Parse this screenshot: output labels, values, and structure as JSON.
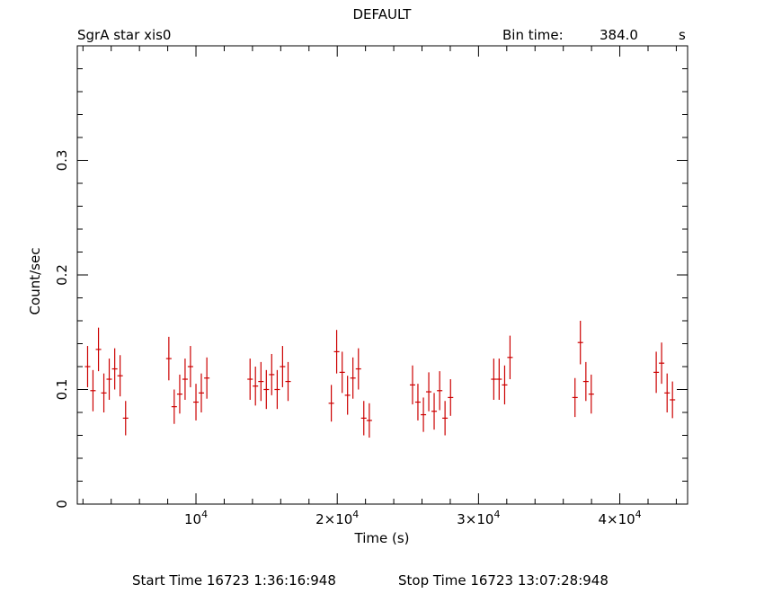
{
  "header": {
    "title": "DEFAULT",
    "source": "SgrA star xis0",
    "bin_label": "Bin time:",
    "bin_value": "384.0",
    "bin_unit": "s"
  },
  "footer": {
    "start": "Start Time 16723  1:36:16:948",
    "stop": "Stop Time 16723 13:07:28:948"
  },
  "colors": {
    "data": "#cc0000",
    "axes": "#000000"
  },
  "chart_data": {
    "type": "scatter",
    "title": "DEFAULT",
    "xlabel": "Time (s)",
    "ylabel": "Count/sec",
    "xlim": [
      1600,
      44800
    ],
    "ylim": [
      0,
      0.4
    ],
    "xticks": [
      {
        "value": 10000,
        "base": "10",
        "exp": "4"
      },
      {
        "value": 20000,
        "base": "2×10",
        "exp": "4"
      },
      {
        "value": 30000,
        "base": "3×10",
        "exp": "4"
      },
      {
        "value": 40000,
        "base": "4×10",
        "exp": "4"
      }
    ],
    "yticks": [
      {
        "value": 0,
        "label": "0"
      },
      {
        "value": 0.1,
        "label": "0.1"
      },
      {
        "value": 0.2,
        "label": "0.2"
      },
      {
        "value": 0.3,
        "label": "0.3"
      }
    ],
    "bin_half_width": 192,
    "series": [
      {
        "x": [
          2330,
          2710,
          3100,
          3480,
          3860,
          4250,
          4630,
          5020,
          8080,
          8460,
          8850,
          9230,
          9610,
          10000,
          10380,
          10770,
          13830,
          14210,
          14600,
          14980,
          15360,
          15750,
          16130,
          16520,
          19580,
          19960,
          20350,
          20730,
          21110,
          21500,
          21880,
          22270,
          25330,
          25710,
          26100,
          26480,
          26860,
          27250,
          27630,
          28020,
          31080,
          31460,
          31850,
          32230,
          36830,
          37210,
          37600,
          37980,
          42580,
          42960,
          43350,
          43730
        ],
        "y": [
          0.12,
          0.099,
          0.135,
          0.097,
          0.109,
          0.118,
          0.112,
          0.075,
          0.127,
          0.085,
          0.096,
          0.109,
          0.12,
          0.089,
          0.097,
          0.11,
          0.109,
          0.103,
          0.107,
          0.1,
          0.113,
          0.1,
          0.12,
          0.107,
          0.088,
          0.133,
          0.115,
          0.095,
          0.11,
          0.118,
          0.075,
          0.073,
          0.104,
          0.089,
          0.078,
          0.098,
          0.081,
          0.099,
          0.075,
          0.093,
          0.109,
          0.109,
          0.104,
          0.128,
          0.093,
          0.141,
          0.107,
          0.096,
          0.115,
          0.123,
          0.097,
          0.091
        ],
        "yerr": [
          0.018,
          0.018,
          0.019,
          0.017,
          0.018,
          0.018,
          0.018,
          0.015,
          0.019,
          0.015,
          0.017,
          0.018,
          0.018,
          0.016,
          0.017,
          0.018,
          0.018,
          0.017,
          0.017,
          0.017,
          0.018,
          0.017,
          0.018,
          0.017,
          0.016,
          0.019,
          0.018,
          0.017,
          0.018,
          0.018,
          0.015,
          0.015,
          0.017,
          0.016,
          0.015,
          0.017,
          0.016,
          0.017,
          0.015,
          0.016,
          0.018,
          0.018,
          0.017,
          0.019,
          0.017,
          0.019,
          0.017,
          0.017,
          0.018,
          0.018,
          0.017,
          0.016
        ]
      }
    ]
  }
}
